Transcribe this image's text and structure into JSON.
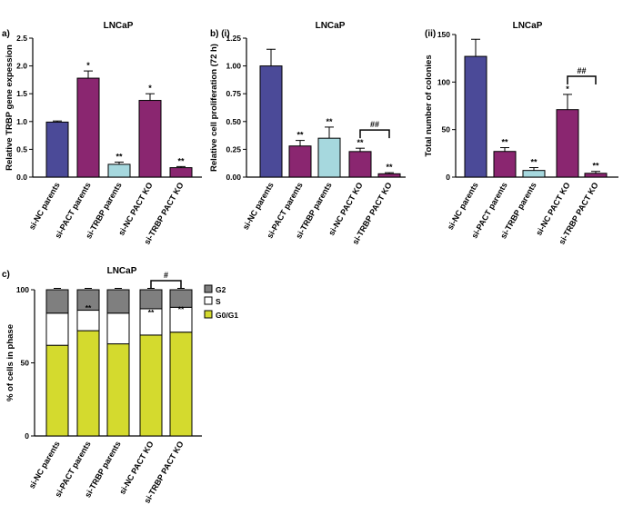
{
  "colors": {
    "si_nc": "#4b4a98",
    "si_pact": "#8a2670",
    "si_trbp": "#a6d8de",
    "g2": "#7f7f7f",
    "s": "#ffffff",
    "g0g1": "#d4da2e"
  },
  "chart_data": [
    {
      "id": "a",
      "type": "bar",
      "panel_label": "a)",
      "title": "LNCaP",
      "ylabel": "Relative TRBP gene expession",
      "ylim": [
        0,
        2.5
      ],
      "yticks": [
        "0.0",
        "0.5",
        "1.0",
        "1.5",
        "2.0",
        "2.5"
      ],
      "ytick_values": [
        0,
        0.5,
        1.0,
        1.5,
        2.0,
        2.5
      ],
      "categories": [
        "si-NC parents",
        "si-PACT parents",
        "si-TRBP parents",
        "si-NC PACT KO",
        "si-TRBP PACT KO"
      ],
      "values": [
        0.99,
        1.78,
        0.23,
        1.38,
        0.17
      ],
      "errors": [
        0.02,
        0.13,
        0.04,
        0.12,
        0.02
      ],
      "bar_colors": [
        "si_nc",
        "si_pact",
        "si_trbp",
        "si_pact",
        "si_pact"
      ],
      "annotations": [
        "",
        "*",
        "**",
        "*",
        "**"
      ]
    },
    {
      "id": "bi",
      "type": "bar",
      "panel_label": "b) (i)",
      "title": "LNCaP",
      "ylabel": "Relative cell proliferation (72 h)",
      "ylim": [
        0,
        1.25
      ],
      "yticks": [
        "0.00",
        "0.25",
        "0.50",
        "0.75",
        "1.00",
        "1.25"
      ],
      "ytick_values": [
        0,
        0.25,
        0.5,
        0.75,
        1.0,
        1.25
      ],
      "categories": [
        "si-NC parents",
        "si-PACT parents",
        "si-TRBP parents",
        "si-NC PACT KO",
        "si-TRBP PACT KO"
      ],
      "values": [
        1.0,
        0.28,
        0.35,
        0.23,
        0.03
      ],
      "errors": [
        0.15,
        0.05,
        0.1,
        0.03,
        0.01
      ],
      "bar_colors": [
        "si_nc",
        "si_pact",
        "si_trbp",
        "si_pact",
        "si_pact"
      ],
      "annotations": [
        "",
        "**",
        "**",
        "**",
        "**"
      ],
      "bracket": {
        "from": 3,
        "to": 4,
        "label": "##"
      }
    },
    {
      "id": "bii",
      "type": "bar",
      "panel_label": "(ii)",
      "title": "LNCaP",
      "ylabel": "Total number of colonies",
      "ylim": [
        0,
        150
      ],
      "yticks": [
        "0",
        "50",
        "100",
        "150"
      ],
      "ytick_values": [
        0,
        50,
        100,
        150
      ],
      "categories": [
        "si-NC parents",
        "si-PACT parents",
        "si-TRBP parents",
        "si-NC PACT KO",
        "si-TRBP PACT KO"
      ],
      "values": [
        127,
        27,
        7,
        71,
        4
      ],
      "errors": [
        18,
        4,
        3,
        16,
        2
      ],
      "bar_colors": [
        "si_nc",
        "si_pact",
        "si_trbp",
        "si_pact",
        "si_pact"
      ],
      "annotations": [
        "",
        "**",
        "**",
        "*",
        "**"
      ],
      "bracket": {
        "from": 3,
        "to": 4,
        "label": "##"
      }
    },
    {
      "id": "c",
      "type": "stacked-bar",
      "panel_label": "c)",
      "title": "LNCaP",
      "ylabel": "% of cells in phase",
      "ylim": [
        0,
        100
      ],
      "yticks": [
        "0",
        "50",
        "100"
      ],
      "ytick_values": [
        0,
        50,
        100
      ],
      "categories": [
        "si-NC parents",
        "si-PACT parents",
        "si-TRBP parents",
        "si-NC PACT KO",
        "si-TRBP PACT KO"
      ],
      "series": [
        {
          "name": "G0/G1",
          "color": "g0g1",
          "values": [
            62,
            72,
            63,
            69,
            71
          ]
        },
        {
          "name": "S",
          "color": "s",
          "values": [
            22,
            14,
            21,
            18,
            17
          ]
        },
        {
          "name": "G2",
          "color": "g2",
          "values": [
            16,
            14,
            16,
            13,
            12
          ]
        }
      ],
      "legend": [
        "G2",
        "S",
        "G0/G1"
      ],
      "annotations": [
        "",
        "**",
        "",
        "**",
        "**"
      ],
      "bracket": {
        "from": 3,
        "to": 4,
        "label": "#"
      }
    }
  ]
}
